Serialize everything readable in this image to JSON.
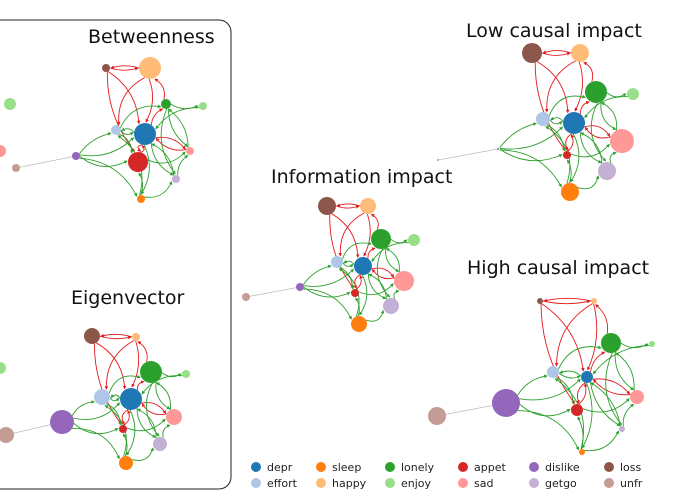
{
  "titles": {
    "betweenness": "Betweenness",
    "eigenvector": "Eigenvector",
    "information": "Information impact",
    "low_causal": "Low causal impact",
    "high_causal": "High causal impact"
  },
  "legend": [
    {
      "id": "depr",
      "label": "depr",
      "color": "#1f77b4"
    },
    {
      "id": "effort",
      "label": "effort",
      "color": "#aec7e8"
    },
    {
      "id": "sleep",
      "label": "sleep",
      "color": "#ff7f0e"
    },
    {
      "id": "happy",
      "label": "happy",
      "color": "#ffbb78"
    },
    {
      "id": "lonely",
      "label": "lonely",
      "color": "#2ca02c"
    },
    {
      "id": "enjoy",
      "label": "enjoy",
      "color": "#98df8a"
    },
    {
      "id": "appet",
      "label": "appet",
      "color": "#d62728"
    },
    {
      "id": "sad",
      "label": "sad",
      "color": "#ff9896"
    },
    {
      "id": "dislike",
      "label": "dislike",
      "color": "#9467bd"
    },
    {
      "id": "getgo",
      "label": "getgo",
      "color": "#c5b0d5"
    },
    {
      "id": "loss",
      "label": "loss",
      "color": "#8c564b"
    },
    {
      "id": "unfr",
      "label": "unfr",
      "color": "#c49c94"
    }
  ],
  "edge_colors": {
    "red": "#e41a1c",
    "green": "#2ca02c",
    "grey": "#bdbdbd"
  },
  "panels": [
    {
      "id": "betweenness",
      "sizes": {
        "loss": 4,
        "happy": 11,
        "lonely": 5,
        "enjoy": 4,
        "effort": 5,
        "depr": 11,
        "appet": 10,
        "sad": 4,
        "getgo": 4,
        "sleep": 4,
        "dislike": 4,
        "unfr": 4
      }
    },
    {
      "id": "eigenvector",
      "sizes": {
        "loss": 8,
        "happy": 4,
        "lonely": 11,
        "enjoy": 4,
        "effort": 8,
        "depr": 11,
        "appet": 4,
        "sad": 8,
        "getgo": 7,
        "sleep": 7,
        "dislike": 12,
        "unfr": 8
      }
    },
    {
      "id": "information",
      "sizes": {
        "loss": 9,
        "happy": 8,
        "lonely": 10,
        "enjoy": 6,
        "effort": 6,
        "depr": 9,
        "appet": 4,
        "sad": 10,
        "getgo": 8,
        "sleep": 8,
        "dislike": 4,
        "unfr": 4
      }
    },
    {
      "id": "low_causal",
      "sizes": {
        "loss": 10,
        "happy": 9,
        "lonely": 11,
        "enjoy": 6,
        "effort": 7,
        "depr": 11,
        "appet": 4,
        "sad": 12,
        "getgo": 9,
        "sleep": 9,
        "dislike": 1,
        "unfr": 1
      }
    },
    {
      "id": "high_causal",
      "sizes": {
        "loss": 3,
        "happy": 3,
        "lonely": 10,
        "enjoy": 3,
        "effort": 6,
        "depr": 6,
        "appet": 6,
        "sad": 7,
        "getgo": 3,
        "sleep": 3,
        "dislike": 14,
        "unfr": 9
      }
    }
  ]
}
